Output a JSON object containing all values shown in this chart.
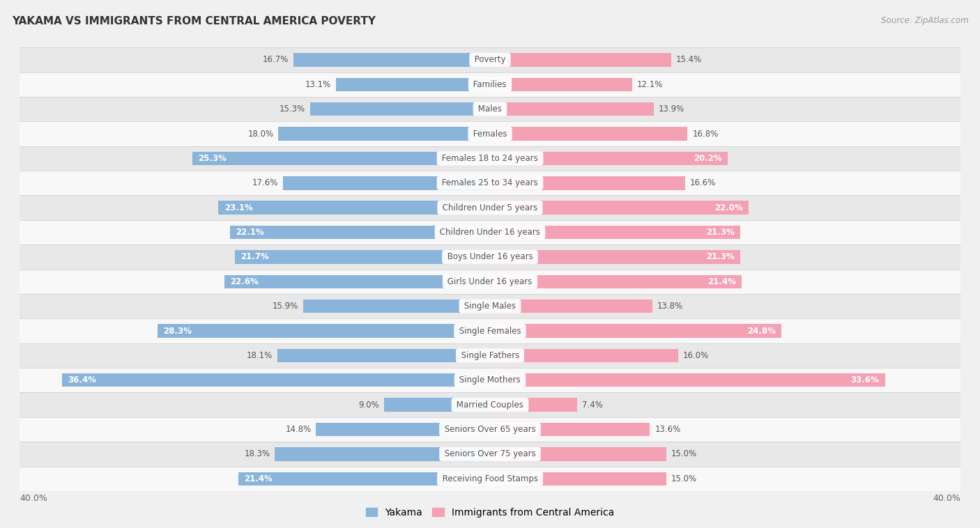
{
  "title": "YAKAMA VS IMMIGRANTS FROM CENTRAL AMERICA POVERTY",
  "source": "Source: ZipAtlas.com",
  "categories": [
    "Poverty",
    "Families",
    "Males",
    "Females",
    "Females 18 to 24 years",
    "Females 25 to 34 years",
    "Children Under 5 years",
    "Children Under 16 years",
    "Boys Under 16 years",
    "Girls Under 16 years",
    "Single Males",
    "Single Females",
    "Single Fathers",
    "Single Mothers",
    "Married Couples",
    "Seniors Over 65 years",
    "Seniors Over 75 years",
    "Receiving Food Stamps"
  ],
  "yakama_values": [
    16.7,
    13.1,
    15.3,
    18.0,
    25.3,
    17.6,
    23.1,
    22.1,
    21.7,
    22.6,
    15.9,
    28.3,
    18.1,
    36.4,
    9.0,
    14.8,
    18.3,
    21.4
  ],
  "immigrants_values": [
    15.4,
    12.1,
    13.9,
    16.8,
    20.2,
    16.6,
    22.0,
    21.3,
    21.3,
    21.4,
    13.8,
    24.8,
    16.0,
    33.6,
    7.4,
    13.6,
    15.0,
    15.0
  ],
  "yakama_color": "#8ab4d9",
  "immigrants_color": "#f4a0b5",
  "bar_height": 0.55,
  "xlim": 40.0,
  "legend_label_1": "Yakama",
  "legend_label_2": "Immigrants from Central America",
  "bg_color": "#f0f0f0",
  "row_color_odd": "#e8e8e8",
  "row_color_even": "#f8f8f8",
  "separator_color": "#cccccc",
  "label_bg_color": "#ffffff",
  "label_text_color": "#555555",
  "value_text_color": "#555555",
  "title_color": "#333333",
  "source_color": "#999999"
}
